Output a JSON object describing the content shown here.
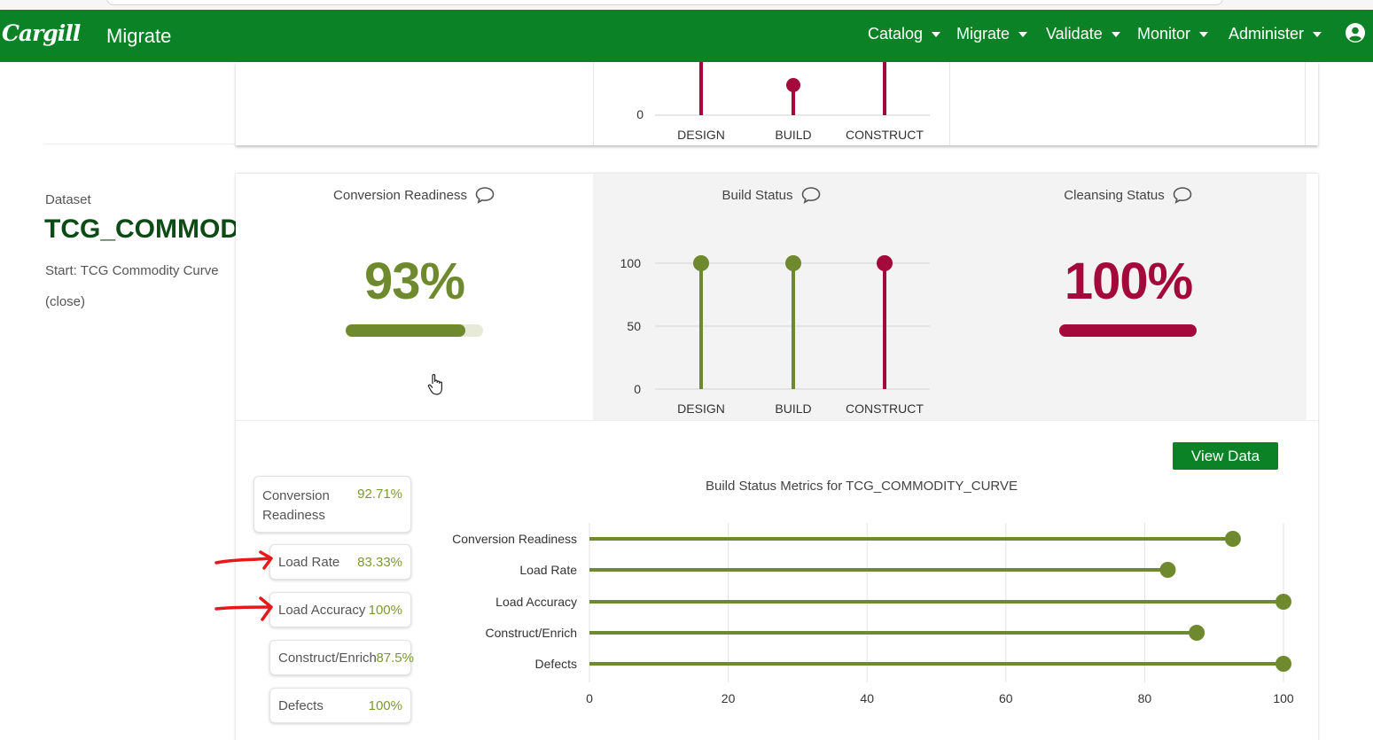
{
  "colors": {
    "brand_green": "#0b8225",
    "olive": "#6f8a2e",
    "crimson": "#a3093a",
    "dark_green": "#0c4a16"
  },
  "navbar": {
    "logo": "Cargill",
    "app_title": "Migrate",
    "menus": [
      {
        "label": "Catalog"
      },
      {
        "label": "Migrate"
      },
      {
        "label": "Validate"
      },
      {
        "label": "Monitor"
      },
      {
        "label": "Administer"
      }
    ],
    "user_icon": "user-circle-icon"
  },
  "dataset": {
    "label": "Dataset",
    "name": "TCG_COMMODITY_CURVE",
    "start": "Start: TCG Commodity Curve",
    "close": "(close)"
  },
  "top_chart": {
    "y_tick": "0",
    "categories": [
      "DESIGN",
      "BUILD",
      "CONSTRUCT"
    ]
  },
  "conversion_readiness": {
    "title": "Conversion Readiness",
    "value_text": "93%",
    "value": 93,
    "icon": "comment-icon"
  },
  "build_status": {
    "title": "Build Status",
    "icon": "comment-icon",
    "y_ticks": [
      "100",
      "50",
      "0"
    ],
    "categories": [
      "DESIGN",
      "BUILD",
      "CONSTRUCT"
    ]
  },
  "cleansing_status": {
    "title": "Cleansing Status",
    "value_text": "100%",
    "value": 100,
    "icon": "comment-icon"
  },
  "metrics": [
    {
      "label": "Conversion Readiness",
      "value": "92.71%"
    },
    {
      "label": "Load Rate",
      "value": "83.33%"
    },
    {
      "label": "Load Accuracy",
      "value": "100%"
    },
    {
      "label": "Construct/Enrich",
      "value": "87.5%"
    },
    {
      "label": "Defects",
      "value": "100%"
    }
  ],
  "view_data_label": "View Data",
  "chart_data": [
    {
      "type": "lollipop",
      "title": "Build Status",
      "categories": [
        "DESIGN",
        "BUILD",
        "CONSTRUCT"
      ],
      "values": [
        100,
        100,
        100
      ],
      "colors": [
        "#6f8a2e",
        "#6f8a2e",
        "#a3093a"
      ],
      "ylim": [
        0,
        100
      ],
      "y_ticks": [
        0,
        50,
        100
      ],
      "grid": true
    },
    {
      "type": "lollipop",
      "orientation": "horizontal",
      "title": "Build Status Metrics for TCG_COMMODITY_CURVE",
      "categories": [
        "Conversion Readiness",
        "Load Rate",
        "Load Accuracy",
        "Construct/Enrich",
        "Defects"
      ],
      "values": [
        92.71,
        83.33,
        100,
        87.5,
        100
      ],
      "xlim": [
        0,
        100
      ],
      "x_ticks": [
        "0",
        "20",
        "40",
        "60",
        "80",
        "100"
      ],
      "grid": true
    }
  ]
}
